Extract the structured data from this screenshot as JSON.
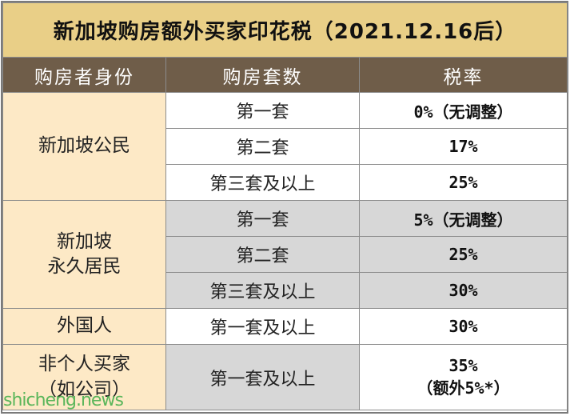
{
  "title": "新加坡购房额外买家印花税（2021.12.16后）",
  "headers": {
    "identity": "购房者身份",
    "count": "购房套数",
    "rate": "税率"
  },
  "groups": [
    {
      "identity_lines": [
        "新加坡公民"
      ],
      "rows": [
        {
          "count": "第一套",
          "rate": "0%（无调整）"
        },
        {
          "count": "第二套",
          "rate": "17%"
        },
        {
          "count": "第三套及以上",
          "rate": "25%"
        }
      ]
    },
    {
      "identity_lines": [
        "新加坡",
        "永久居民"
      ],
      "rows": [
        {
          "count": "第一套",
          "rate": "5%（无调整）"
        },
        {
          "count": "第二套",
          "rate": "25%"
        },
        {
          "count": "第三套及以上",
          "rate": "30%"
        }
      ]
    },
    {
      "identity_lines": [
        "外国人"
      ],
      "rows": [
        {
          "count": "第一套及以上",
          "rate": "30%"
        }
      ]
    },
    {
      "identity_lines": [
        "非个人买家",
        "（如公司）"
      ],
      "rows": [
        {
          "count": "第一套及以上",
          "rate_lines": [
            "35%",
            "（额外5%*）"
          ]
        }
      ]
    }
  ],
  "watermark": "shicheng.news"
}
